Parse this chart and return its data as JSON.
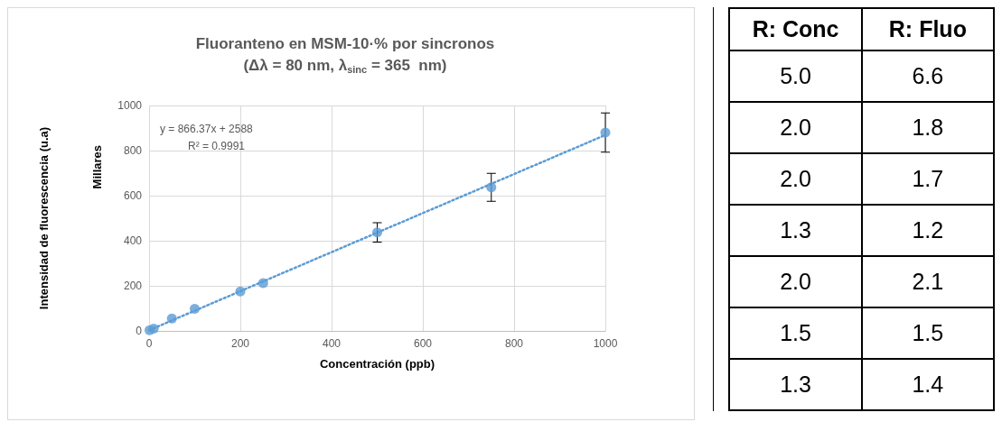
{
  "chart_data": [
    {
      "type": "scatter",
      "title": "Fluoranteno en MSM-10·% por sincronos",
      "subtitle": "(Δλ = 80 nm, λ$_{sinc}$ = 365  nm)",
      "xlabel": "Concentración (ppb)",
      "ylabel": "Intensidad de fluorescencia (u.a)",
      "annotations": [
        "y = 866.37x + 2588",
        "R² = 0.9991",
        "Millares"
      ],
      "xlim": [
        0,
        1000
      ],
      "xticks": [
        0,
        200,
        400,
        600,
        800,
        1000
      ],
      "ylim": [
        0,
        1000
      ],
      "yticks": [
        0,
        200,
        400,
        600,
        800,
        1000
      ],
      "grid": true,
      "marker": "circle",
      "series": [
        {
          "type": "scatter",
          "color": "#5b9bd5",
          "x": [
            1,
            10,
            50,
            100,
            200,
            250,
            500,
            750,
            1000
          ],
          "values": [
            3,
            10,
            55,
            98,
            175,
            212,
            437,
            637,
            880
          ],
          "errors": [
            null,
            null,
            null,
            null,
            null,
            null,
            43,
            62,
            87
          ]
        },
        {
          "type": "line",
          "color": "#5b9bd5",
          "line_style": "dotted",
          "marker": "none",
          "x": [
            0,
            1000
          ],
          "values": [
            3,
            869
          ]
        }
      ]
    },
    {
      "type": "other",
      "categories": [
        "R: Conc",
        "R: Fluo"
      ],
      "cells": [
        [
          "5.0",
          "6.6"
        ],
        [
          "2.0",
          "1.8"
        ],
        [
          "2.0",
          "1.7"
        ],
        [
          "1.3",
          "1.2"
        ],
        [
          "2.0",
          "2.1"
        ],
        [
          "1.5",
          "1.5"
        ],
        [
          "1.3",
          "1.4"
        ]
      ]
    }
  ]
}
